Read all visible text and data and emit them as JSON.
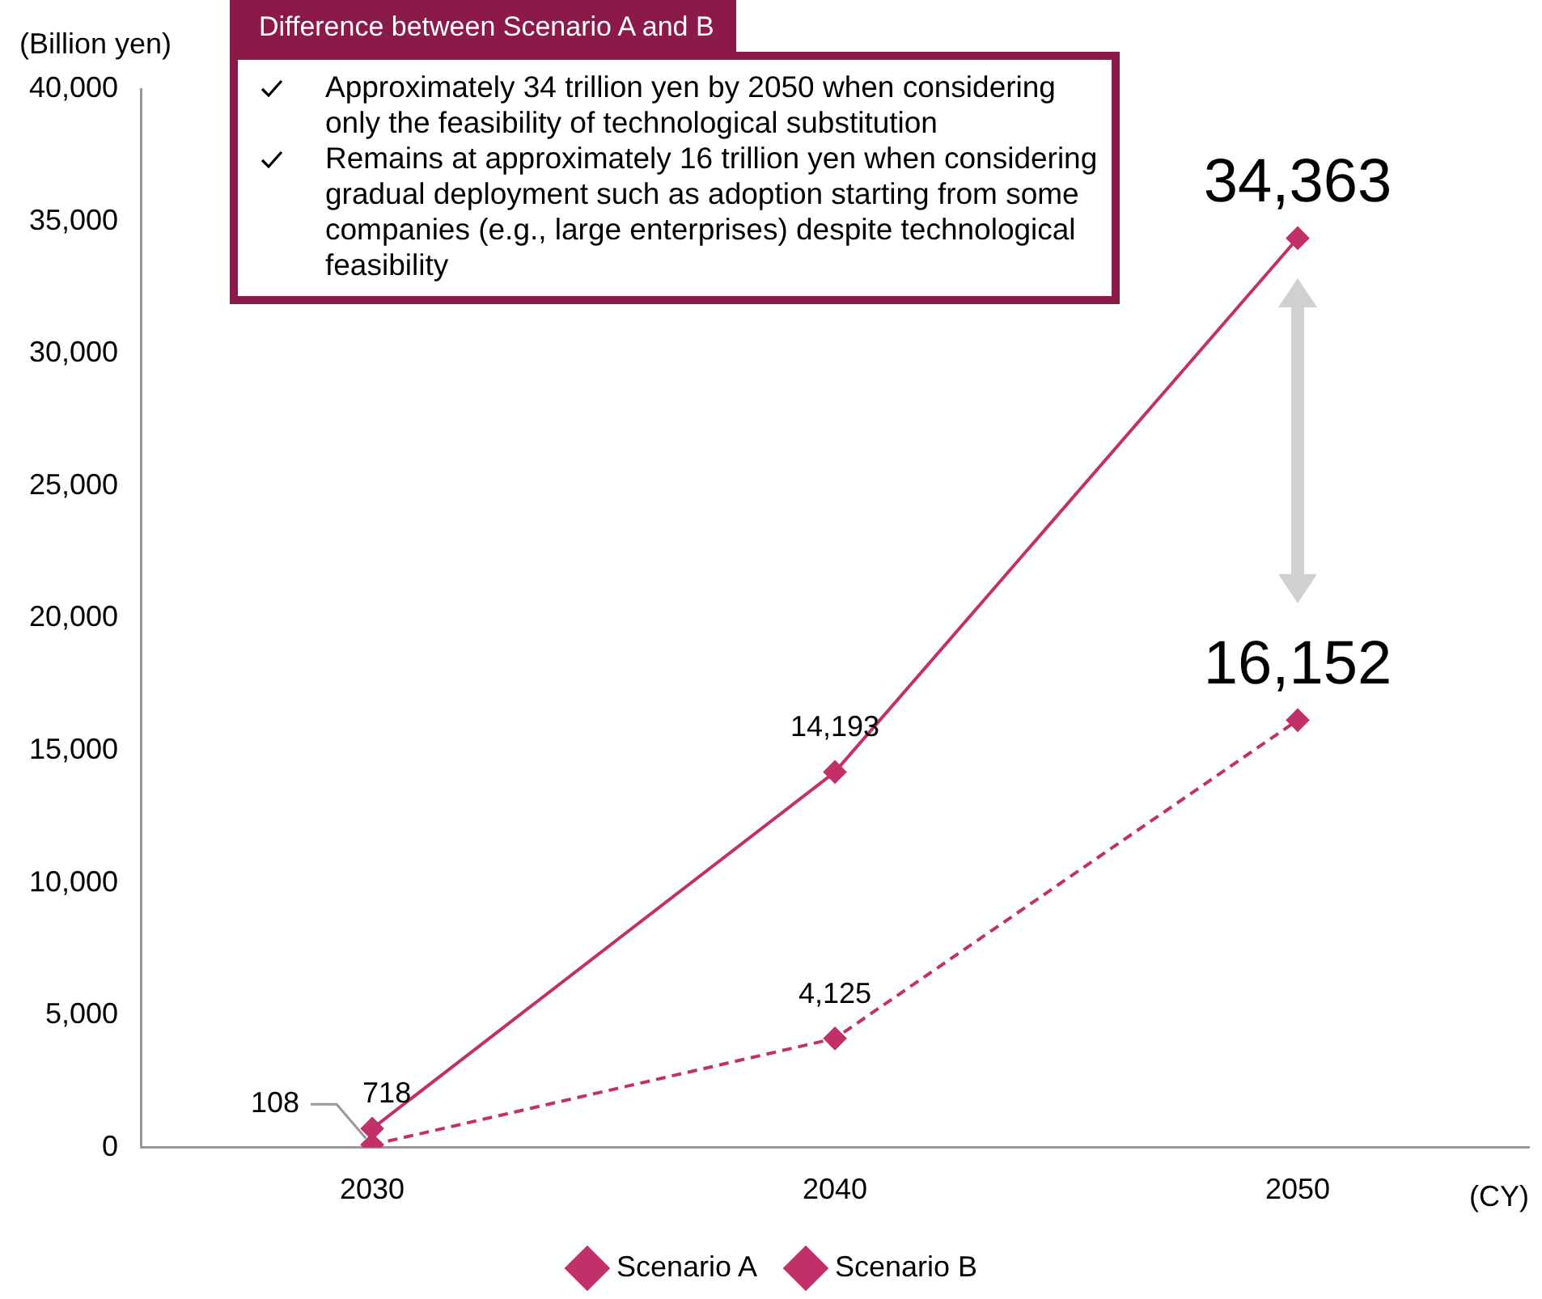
{
  "chart_data": {
    "type": "line",
    "categories": [
      "2030",
      "2040",
      "2050"
    ],
    "series": [
      {
        "name": "Scenario A",
        "color": "#c2306a",
        "values": [
          718,
          14193,
          34363
        ],
        "value_labels": [
          "718",
          "14,193",
          "34,363"
        ],
        "line_style": "solid"
      },
      {
        "name": "Scenario B",
        "color": "#c2306a",
        "values": [
          108,
          4125,
          16152
        ],
        "value_labels": [
          "108",
          "4,125",
          "16,152"
        ],
        "line_style": "dashed"
      }
    ],
    "ylabel": "(Billion yen)",
    "xlabel": "(CY)",
    "ylim": [
      0,
      40000
    ],
    "yticks": [
      {
        "value": 0,
        "label": "0"
      },
      {
        "value": 5000,
        "label": "5,000"
      },
      {
        "value": 10000,
        "label": "10,000"
      },
      {
        "value": 15000,
        "label": "15,000"
      },
      {
        "value": 20000,
        "label": "20,000"
      },
      {
        "value": 25000,
        "label": "25,000"
      },
      {
        "value": 30000,
        "label": "30,000"
      },
      {
        "value": 35000,
        "label": "35,000"
      },
      {
        "value": 40000,
        "label": "40,000"
      }
    ],
    "annotations": [
      "Difference between Scenario A and B",
      "Approximately 34 trillion yen by 2050 when considering only the feasibility of technological substitution",
      "Remains at approximately 16 trillion yen when considering gradual deployment such as adoption starting from some companies (e.g., large enterprises) despite technological feasibility"
    ],
    "grid": false,
    "legend": "bottom",
    "marker": "diamond"
  }
}
